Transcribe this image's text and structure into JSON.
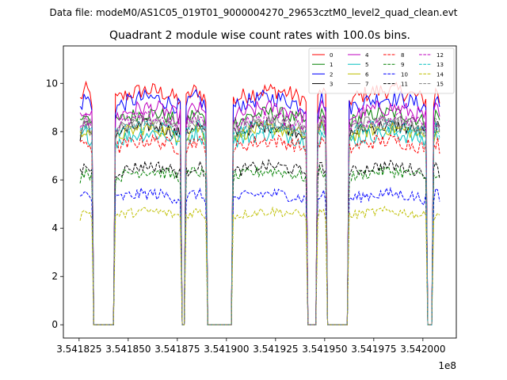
{
  "figure": {
    "suptitle": "Data file: modeM0/AS1C05_019T01_9000004270_29653cztM0_level2_quad_clean.evt"
  },
  "chart_data": {
    "type": "line",
    "title": "Quadrant 2 module wise count rates with 100.0s bins.",
    "xlabel": "",
    "ylabel": "",
    "x_offset_label": "1e8",
    "xlim": [
      3.541817,
      3.542017
    ],
    "ylim": [
      -0.55,
      11.55
    ],
    "xticks": [
      3.541825,
      3.54185,
      3.541875,
      3.5419,
      3.541925,
      3.54195,
      3.541975,
      3.542
    ],
    "xtick_labels": [
      "3.541825",
      "3.541850",
      "3.541875",
      "3.541900",
      "3.541925",
      "3.541950",
      "3.541975",
      "3.542000"
    ],
    "yticks": [
      0,
      2,
      4,
      6,
      8,
      10
    ],
    "ytick_labels": [
      "0",
      "2",
      "4",
      "6",
      "8",
      "10"
    ],
    "grid": false,
    "legend_position": "top-right",
    "legend_columns": 4,
    "segments": [
      {
        "on": [
          3.5418255,
          3.5418315
        ],
        "off": [
          3.5418325,
          3.5418425
        ]
      },
      {
        "on": [
          3.5418435,
          3.5418765
        ],
        "off": [
          3.5418775,
          3.5418785
        ]
      },
      {
        "on": [
          3.5418795,
          3.5418895
        ],
        "off": [
          3.5418905,
          3.5419025
        ]
      },
      {
        "on": [
          3.5419035,
          3.5419405
        ],
        "off": [
          3.5419415,
          3.5419455
        ]
      },
      {
        "on": [
          3.5419465,
          3.5419505
        ],
        "off": [
          3.5419515,
          3.5419615
        ]
      },
      {
        "on": [
          3.5419625,
          3.5420015
        ],
        "off": [
          3.5420025,
          3.5420045
        ]
      },
      {
        "on": [
          3.5420055,
          3.5420085
        ],
        "off": []
      }
    ],
    "series": [
      {
        "name": "0",
        "color": "#ff0000",
        "dash": "solid",
        "level": 9.3,
        "jitter": 0.35
      },
      {
        "name": "1",
        "color": "#008000",
        "dash": "solid",
        "level": 8.4,
        "jitter": 0.3
      },
      {
        "name": "2",
        "color": "#0000ff",
        "dash": "solid",
        "level": 9.0,
        "jitter": 0.35
      },
      {
        "name": "3",
        "color": "#000000",
        "dash": "solid",
        "level": 7.9,
        "jitter": 0.3
      },
      {
        "name": "4",
        "color": "#bf00bf",
        "dash": "solid",
        "level": 8.6,
        "jitter": 0.35
      },
      {
        "name": "5",
        "color": "#00bfbf",
        "dash": "solid",
        "level": 7.6,
        "jitter": 0.35
      },
      {
        "name": "6",
        "color": "#bfbf00",
        "dash": "solid",
        "level": 7.8,
        "jitter": 0.3
      },
      {
        "name": "7",
        "color": "#808080",
        "dash": "solid",
        "level": 8.1,
        "jitter": 0.3
      },
      {
        "name": "8",
        "color": "#ff0000",
        "dash": "dashed",
        "level": 7.3,
        "jitter": 0.3
      },
      {
        "name": "9",
        "color": "#008000",
        "dash": "dashed",
        "level": 6.1,
        "jitter": 0.25
      },
      {
        "name": "10",
        "color": "#0000ff",
        "dash": "dashed",
        "level": 5.2,
        "jitter": 0.25
      },
      {
        "name": "11",
        "color": "#000000",
        "dash": "dashed",
        "level": 6.3,
        "jitter": 0.25
      },
      {
        "name": "12",
        "color": "#bf00bf",
        "dash": "dashed",
        "level": 8.2,
        "jitter": 0.3
      },
      {
        "name": "13",
        "color": "#00bfbf",
        "dash": "dashed",
        "level": 7.9,
        "jitter": 0.3
      },
      {
        "name": "14",
        "color": "#bfbf00",
        "dash": "dashed",
        "level": 4.5,
        "jitter": 0.2
      },
      {
        "name": "15",
        "color": "#808080",
        "dash": "dashed",
        "level": 8.0,
        "jitter": 0.3
      }
    ]
  }
}
